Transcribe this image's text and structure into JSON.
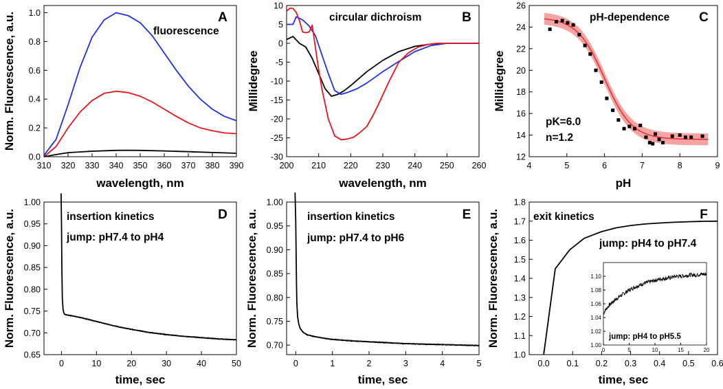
{
  "colors": {
    "black": "#000000",
    "red": "#e8151b",
    "blue": "#1f2fe6",
    "band": "#f6a3a3",
    "fit": "#e0363a"
  },
  "chart_data": [
    {
      "id": "A",
      "type": "line",
      "letter": "A",
      "annotations": [
        "fluorescence"
      ],
      "xlabel": "wavelength, nm",
      "ylabel": "Norm. Fluorescence, a.u.",
      "xlim": [
        310,
        390
      ],
      "ylim": [
        0,
        1.05
      ],
      "xticks": [
        310,
        320,
        330,
        340,
        350,
        360,
        370,
        380,
        390
      ],
      "yticks": [
        0.0,
        0.2,
        0.4,
        0.6,
        0.8,
        1.0
      ],
      "ydec": 1,
      "series": [
        {
          "name": "blue",
          "color": "blue",
          "x": [
            310,
            315,
            320,
            325,
            330,
            335,
            340,
            345,
            350,
            355,
            360,
            365,
            370,
            375,
            380,
            385,
            390
          ],
          "y": [
            0.01,
            0.12,
            0.36,
            0.62,
            0.83,
            0.95,
            1.0,
            0.98,
            0.93,
            0.84,
            0.72,
            0.6,
            0.49,
            0.4,
            0.33,
            0.28,
            0.25
          ]
        },
        {
          "name": "red",
          "color": "red",
          "x": [
            310,
            315,
            320,
            325,
            330,
            335,
            340,
            345,
            350,
            355,
            360,
            365,
            370,
            375,
            380,
            385,
            390
          ],
          "y": [
            0.0,
            0.07,
            0.2,
            0.31,
            0.39,
            0.44,
            0.455,
            0.445,
            0.42,
            0.38,
            0.33,
            0.28,
            0.235,
            0.2,
            0.18,
            0.165,
            0.16
          ]
        },
        {
          "name": "black",
          "color": "black",
          "x": [
            310,
            315,
            320,
            330,
            340,
            345,
            350,
            360,
            370,
            380,
            390
          ],
          "y": [
            0.0,
            0.015,
            0.028,
            0.038,
            0.044,
            0.045,
            0.044,
            0.04,
            0.035,
            0.029,
            0.024
          ]
        }
      ]
    },
    {
      "id": "B",
      "type": "line",
      "letter": "B",
      "annotations": [
        "circular dichroism"
      ],
      "xlabel": "wavelength, nm",
      "ylabel": "Millidegree",
      "xlim": [
        200,
        260
      ],
      "ylim": [
        -30,
        10
      ],
      "xticks": [
        200,
        210,
        220,
        230,
        240,
        250,
        260
      ],
      "yticks": [
        -30,
        -25,
        -20,
        -15,
        -10,
        -5,
        0,
        5,
        10
      ],
      "ydec": 0,
      "series": [
        {
          "name": "black",
          "color": "black",
          "x": [
            200,
            202,
            204,
            206,
            208,
            210,
            212,
            214,
            216,
            218,
            220,
            225,
            230,
            235,
            240,
            245,
            250,
            255,
            260
          ],
          "y": [
            1,
            1.8,
            0,
            -1,
            -4,
            -8,
            -12,
            -14,
            -13.5,
            -12.5,
            -11.2,
            -7.5,
            -4.5,
            -2.2,
            -0.8,
            -0.2,
            0,
            0,
            0
          ]
        },
        {
          "name": "blue",
          "color": "blue",
          "x": [
            200,
            202,
            203,
            205,
            207,
            209,
            211,
            213,
            215,
            217,
            219,
            222,
            225,
            230,
            235,
            240,
            245,
            250,
            255,
            260
          ],
          "y": [
            5,
            5,
            7,
            6.2,
            4.6,
            2,
            -3,
            -8,
            -12.5,
            -13.5,
            -13,
            -12,
            -10.5,
            -7.5,
            -4.8,
            -2.2,
            -0.6,
            0,
            0,
            0
          ]
        },
        {
          "name": "red",
          "color": "red",
          "x": [
            200,
            201,
            202,
            203,
            204,
            205,
            206,
            207,
            208,
            209,
            210,
            211,
            213,
            215,
            217,
            219,
            221,
            223,
            225,
            227,
            229,
            232,
            235,
            238,
            241,
            244,
            247,
            250,
            255,
            260
          ],
          "y": [
            8.5,
            9.3,
            9.2,
            8.2,
            6,
            3,
            2.8,
            3,
            4.8,
            -1.2,
            -7,
            -12,
            -20,
            -24.5,
            -25.5,
            -25.3,
            -24.8,
            -23.5,
            -22,
            -19,
            -15.5,
            -10,
            -5,
            -2.5,
            -1,
            -0.3,
            0,
            0,
            0,
            0
          ]
        }
      ]
    },
    {
      "id": "C",
      "type": "scatter",
      "letter": "C",
      "annotations": [
        "pH-dependence",
        "pK=6.0",
        "n=1.2"
      ],
      "xlabel": "pH",
      "ylabel": "Millidegree",
      "xlim": [
        4,
        9
      ],
      "ylim": [
        12,
        26
      ],
      "xticks": [
        4,
        5,
        6,
        7,
        8,
        9
      ],
      "yticks": [
        12,
        14,
        16,
        18,
        20,
        22,
        24,
        26
      ],
      "ydec": 0,
      "fit": {
        "pK": 6.0,
        "n": 1.2,
        "top": 24.9,
        "bottom": 13.6,
        "band": 0.55
      },
      "points": {
        "x": [
          4.55,
          4.72,
          4.88,
          5.02,
          5.17,
          5.33,
          5.48,
          5.62,
          5.77,
          5.92,
          6.06,
          6.22,
          6.37,
          6.52,
          6.66,
          6.8,
          6.95,
          7.1,
          7.2,
          7.28,
          7.35,
          7.45,
          7.55,
          7.8,
          8.0,
          8.15,
          8.3,
          8.6
        ],
        "y": [
          23.8,
          24.5,
          24.6,
          24.4,
          24.2,
          23.3,
          22.3,
          21.5,
          20.0,
          18.9,
          17.4,
          16.3,
          15.4,
          14.6,
          14.8,
          14.6,
          14.9,
          13.8,
          13.3,
          13.2,
          14.1,
          13.6,
          13.3,
          13.9,
          14.0,
          13.8,
          13.8,
          13.9
        ]
      }
    },
    {
      "id": "D",
      "type": "line",
      "letter": "D",
      "annotations": [
        "insertion kinetics",
        "jump: pH7.4 to pH4"
      ],
      "xlabel": "time, sec",
      "ylabel": "Norm. Fluorescence, a.u.",
      "xlim": [
        -5,
        50
      ],
      "ylim": [
        0.65,
        1.0
      ],
      "xticks": [
        0,
        10,
        20,
        30,
        40,
        50
      ],
      "yticks": [
        0.65,
        0.7,
        0.75,
        0.8,
        0.85,
        0.9,
        0.95,
        1.0
      ],
      "ydec": 2,
      "series": [
        {
          "name": "kinetics",
          "color": "black",
          "x": [
            -0.1,
            0,
            0.1,
            0.25,
            0.45,
            0.7,
            1.0,
            1.5,
            3,
            5,
            10,
            15,
            20,
            25,
            30,
            35,
            40,
            45,
            50
          ],
          "y": [
            1.02,
            0.95,
            0.85,
            0.78,
            0.755,
            0.745,
            0.742,
            0.741,
            0.739,
            0.736,
            0.726,
            0.716,
            0.708,
            0.701,
            0.696,
            0.692,
            0.689,
            0.686,
            0.684
          ]
        }
      ]
    },
    {
      "id": "E",
      "type": "line",
      "letter": "E",
      "annotations": [
        "insertion kinetics",
        "jump: pH7.4 to pH6"
      ],
      "xlabel": "time, sec",
      "ylabel": "Norm. Fluorescence, a.u.",
      "xlim": [
        -0.25,
        5
      ],
      "ylim": [
        0.68,
        1.0
      ],
      "xticks": [
        0,
        1,
        2,
        3,
        4,
        5
      ],
      "yticks": [
        0.7,
        0.75,
        0.8,
        0.85,
        0.9,
        0.95,
        1.0
      ],
      "ydec": 2,
      "series": [
        {
          "name": "kinetics",
          "color": "black",
          "x": [
            -0.02,
            0,
            0.01,
            0.02,
            0.03,
            0.05,
            0.08,
            0.12,
            0.2,
            0.3,
            0.5,
            0.8,
            1,
            1.5,
            2,
            2.5,
            3,
            3.5,
            4,
            4.5,
            5
          ],
          "y": [
            1.02,
            0.96,
            0.89,
            0.83,
            0.79,
            0.76,
            0.745,
            0.735,
            0.727,
            0.722,
            0.718,
            0.714,
            0.712,
            0.709,
            0.707,
            0.705,
            0.703,
            0.702,
            0.701,
            0.7,
            0.699
          ]
        }
      ]
    },
    {
      "id": "F",
      "type": "line",
      "letter": "F",
      "annotations": [
        "exit kinetics",
        "jump: pH4 to pH7.4"
      ],
      "xlabel": "time, sec",
      "ylabel": "Norm. Fluorescence, a.u.",
      "xlim": [
        -0.05,
        0.6
      ],
      "ylim": [
        1.0,
        1.8
      ],
      "xticks": [
        0.0,
        0.1,
        0.2,
        0.3,
        0.4,
        0.5,
        0.6
      ],
      "yticks": [
        1.0,
        1.1,
        1.2,
        1.3,
        1.4,
        1.5,
        1.6,
        1.7,
        1.8
      ],
      "ydec": 1,
      "series": [
        {
          "name": "kinetics",
          "color": "black",
          "x": [
            0,
            0.04,
            0.09,
            0.14,
            0.2,
            0.25,
            0.3,
            0.35,
            0.4,
            0.45,
            0.5,
            0.55,
            0.6
          ],
          "y": [
            1.0,
            1.45,
            1.55,
            1.61,
            1.645,
            1.665,
            1.677,
            1.685,
            1.69,
            1.694,
            1.697,
            1.699,
            1.7
          ]
        }
      ],
      "inset": {
        "annotation": "jump: pH4 to pH5.5",
        "xlim": [
          0,
          20
        ],
        "ylim": [
          1.0,
          1.12
        ],
        "xticks": [
          0,
          5,
          10,
          15,
          20
        ],
        "yticks": [
          1.0,
          1.02,
          1.04,
          1.06,
          1.08,
          1.1
        ],
        "ydec": 2,
        "series": {
          "name": "kinetics",
          "color": "black",
          "x": [
            0,
            0.3,
            1,
            2,
            3,
            4,
            5,
            6,
            7,
            8,
            9,
            10,
            11,
            12,
            13,
            14,
            15,
            16,
            17,
            18,
            19,
            20
          ],
          "y": [
            1.045,
            1.05,
            1.057,
            1.064,
            1.07,
            1.075,
            1.08,
            1.084,
            1.087,
            1.09,
            1.092,
            1.094,
            1.096,
            1.097,
            1.098,
            1.1,
            1.1,
            1.101,
            1.102,
            1.102,
            1.103,
            1.103
          ]
        }
      }
    }
  ]
}
